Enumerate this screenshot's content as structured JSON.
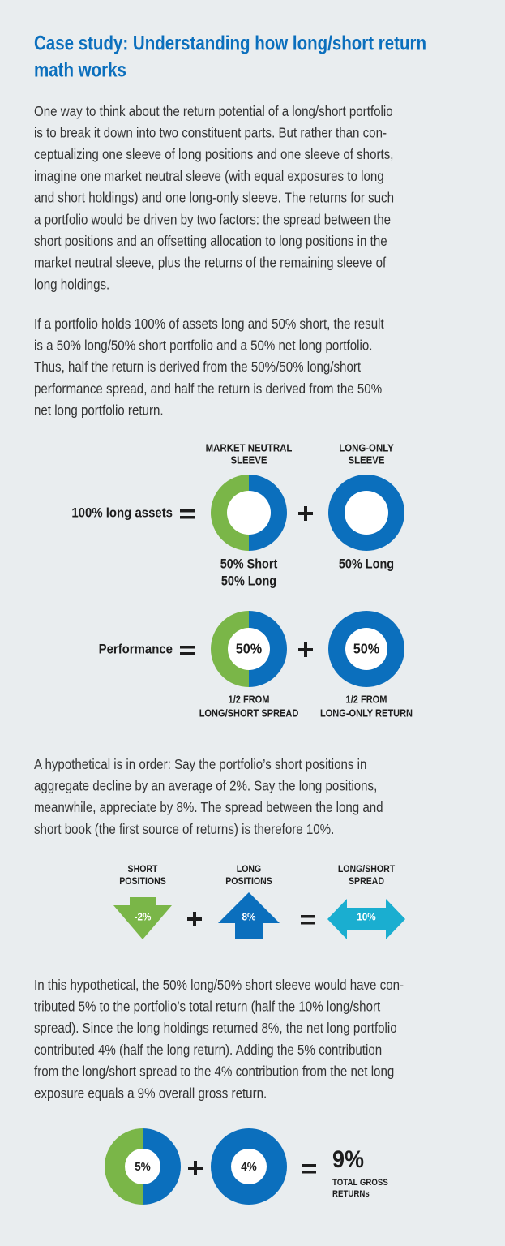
{
  "title": [
    "Case study: Understanding how long/short return",
    "math works"
  ],
  "paragraphs": [
    [
      "One way to think about the return potential of a long/short portfolio",
      "is to break it down into two constituent parts. But rather than con-",
      "ceptualizing one sleeve of long positions and one sleeve of shorts,",
      "imagine one market neutral sleeve (with equal exposures to long",
      "and short holdings) and one long-only sleeve. The returns for such",
      "a portfolio would be driven by two factors: the spread between the",
      "short positions and an offsetting allocation to long positions in the",
      "market neutral sleeve, plus the returns of the remaining sleeve of",
      "long holdings."
    ],
    [
      "If a portfolio holds 100% of assets long and 50% short, the result",
      "is a 50% long/50% short portfolio and a 50% net long portfolio.",
      "Thus, half the return is derived from the 50%/50% long/short",
      "performance spread, and half the return is derived from the 50%",
      "net long portfolio return."
    ],
    [
      "A hypothetical is in order: Say the portfolio’s short positions in",
      "aggregate decline by an average of 2%. Say the long positions,",
      "meanwhile, appreciate by 8%. The spread between the long and",
      "short book (the first source of returns) is therefore 10%."
    ],
    [
      "In this hypothetical, the 50% long/50% short sleeve would have con-",
      "tributed 5% to the portfolio’s total return (half the 10% long/short",
      "spread). Since the long holdings returned 8%, the net long portfolio",
      "contributed 4% (half the long return). Adding the 5% contribution",
      "from the long/short spread to the 4% contribution from the net long",
      "exposure equals a 9% overall gross return."
    ]
  ],
  "allocation_diagram": {
    "row_label": "100% long assets",
    "columns": [
      {
        "header": [
          "MARKET NEUTRAL",
          "SLEEVE"
        ],
        "caption": [
          "50% Short",
          "50% Long"
        ]
      },
      {
        "header": [
          "LONG-ONLY",
          "SLEEVE"
        ],
        "caption": [
          "50% Long"
        ]
      }
    ]
  },
  "performance_diagram": {
    "row_label": "Performance",
    "items": [
      {
        "value": "50%",
        "caption": [
          "1/2 FROM",
          "LONG/SHORT SPREAD"
        ]
      },
      {
        "value": "50%",
        "caption": [
          "1/2 FROM",
          "LONG-ONLY RETURN"
        ]
      }
    ]
  },
  "spread_diagram": {
    "items": [
      {
        "header": [
          "SHORT",
          "POSITIONS"
        ],
        "value": "-2%"
      },
      {
        "header": [
          "LONG",
          "POSITIONS"
        ],
        "value": "8%"
      },
      {
        "header": [
          "LONG/SHORT",
          "SPREAD"
        ],
        "value": "10%"
      }
    ]
  },
  "total_diagram": {
    "items": [
      "5%",
      "4%"
    ],
    "total": "9%",
    "total_caption": [
      "TOTAL GROSS",
      "RETURNs"
    ]
  }
}
